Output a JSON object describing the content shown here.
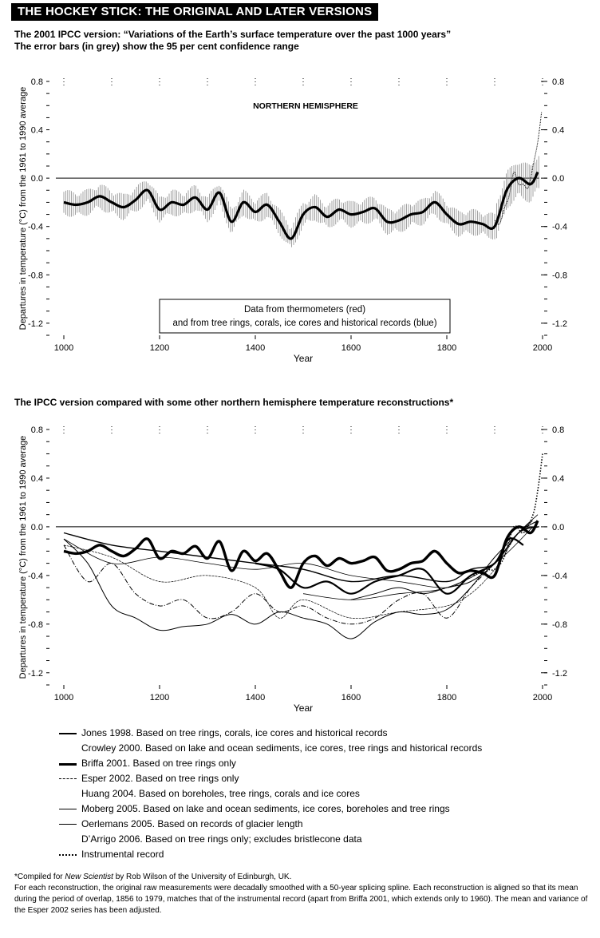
{
  "header": {
    "banner": "THE HOCKEY STICK: THE ORIGINAL AND LATER VERSIONS",
    "subtitle1_line1": "The 2001 IPCC version: “Variations of the Earth’s surface temperature over the past 1000 years”",
    "subtitle1_line2": "The error bars (in grey) show the 95 per cent confidence range",
    "subtitle2": "The IPCC version compared with some other northern hemisphere temperature reconstructions*"
  },
  "colors": {
    "ink": "#000000",
    "grey": "#8a8a8a",
    "background": "#ffffff"
  },
  "chart_data": [
    {
      "type": "line",
      "title": "NORTHERN HEMISPHERE",
      "xlabel": "Year",
      "ylabel": "Departures in temperature (°C) from the 1961 to 1990 average",
      "xlim": [
        1000,
        2000
      ],
      "ylim": [
        -1.3,
        0.8
      ],
      "x_ticks": [
        "1000",
        "1200",
        "1400",
        "1600",
        "1800",
        "2000"
      ],
      "y_ticks": [
        "0.8",
        "0.4",
        "0.0",
        "-0.4",
        "-0.8",
        "-1.2"
      ],
      "legend": "Data from thermometers (red) and from tree rings, corals, ice cores and historical records (blue)",
      "legend_line1": "Data from thermometers (red)",
      "legend_line2": "and from tree rings, corals, ice cores and historical records (blue)",
      "series": [
        {
          "x": [
            1000,
            1025,
            1050,
            1075,
            1100,
            1125,
            1150,
            1175,
            1200,
            1225,
            1250,
            1275,
            1300,
            1325,
            1350,
            1375,
            1400,
            1425,
            1450,
            1475,
            1500,
            1525,
            1550,
            1575,
            1600,
            1625,
            1650,
            1675,
            1700,
            1725,
            1750,
            1775,
            1800,
            1825,
            1850,
            1875,
            1900,
            1925,
            1950,
            1975,
            1990
          ],
          "y": [
            -0.2,
            -0.22,
            -0.2,
            -0.15,
            -0.2,
            -0.24,
            -0.18,
            -0.1,
            -0.26,
            -0.2,
            -0.22,
            -0.16,
            -0.26,
            -0.12,
            -0.36,
            -0.2,
            -0.28,
            -0.22,
            -0.36,
            -0.5,
            -0.3,
            -0.24,
            -0.32,
            -0.26,
            -0.3,
            -0.28,
            -0.25,
            -0.36,
            -0.35,
            -0.3,
            -0.28,
            -0.2,
            -0.3,
            -0.38,
            -0.36,
            -0.38,
            -0.4,
            -0.1,
            0.0,
            -0.05,
            0.05
          ]
        },
        {
          "name": "Instrumental record",
          "x": [
            1900,
            1910,
            1920,
            1930,
            1940,
            1950,
            1960,
            1970,
            1980,
            1990,
            1998
          ],
          "y": [
            -0.35,
            -0.38,
            -0.25,
            -0.15,
            0.05,
            -0.05,
            -0.05,
            -0.08,
            0.1,
            0.3,
            0.55
          ]
        }
      ]
    },
    {
      "type": "line",
      "xlabel": "Year",
      "ylabel": "Departures in temperature (°C) from the 1961 to 1990 average",
      "xlim": [
        1000,
        2000
      ],
      "ylim": [
        -1.3,
        0.8
      ],
      "x_ticks": [
        "1000",
        "1200",
        "1400",
        "1600",
        "1800",
        "2000"
      ],
      "y_ticks": [
        "0.8",
        "0.4",
        "0.0",
        "-0.4",
        "-0.8",
        "-1.2"
      ],
      "series": [
        {
          "name": "Jones 1998. Based on tree rings, corals, ice cores and historical records",
          "x": [
            1000,
            1100,
            1200,
            1300,
            1400,
            1500,
            1600,
            1700,
            1800,
            1850,
            1900,
            1950,
            1991
          ],
          "y": [
            -0.05,
            -0.15,
            -0.2,
            -0.25,
            -0.3,
            -0.35,
            -0.45,
            -0.4,
            -0.45,
            -0.35,
            -0.3,
            -0.05,
            0.0
          ]
        },
        {
          "name": "Crowley 2000. Based on lake and ocean sediments, ice cores, tree rings and historical records",
          "x": [
            1000,
            1100,
            1200,
            1300,
            1400,
            1500,
            1600,
            1700,
            1800,
            1850,
            1900,
            1950,
            1990
          ],
          "y": [
            -0.1,
            -0.3,
            -0.25,
            -0.3,
            -0.35,
            -0.3,
            -0.4,
            -0.45,
            -0.5,
            -0.4,
            -0.3,
            -0.05,
            0.1
          ]
        },
        {
          "name": "Briffa 2001. Based on tree rings only",
          "x": [
            1400,
            1450,
            1500,
            1550,
            1600,
            1650,
            1700,
            1750,
            1800,
            1850,
            1900,
            1930,
            1960
          ],
          "y": [
            -0.3,
            -0.35,
            -0.5,
            -0.45,
            -0.55,
            -0.45,
            -0.4,
            -0.35,
            -0.55,
            -0.4,
            -0.3,
            -0.1,
            -0.15
          ]
        },
        {
          "name": "Esper 2002. Based on tree rings only",
          "x": [
            1000,
            1050,
            1100,
            1150,
            1200,
            1250,
            1300,
            1350,
            1400,
            1450,
            1500,
            1550,
            1600,
            1650,
            1700,
            1750,
            1800,
            1850,
            1900,
            1950,
            1990
          ],
          "y": [
            -0.15,
            -0.45,
            -0.3,
            -0.55,
            -0.65,
            -0.6,
            -0.75,
            -0.7,
            -0.55,
            -0.7,
            -0.65,
            -0.75,
            -0.8,
            -0.75,
            -0.6,
            -0.55,
            -0.75,
            -0.5,
            -0.3,
            -0.05,
            0.05
          ]
        },
        {
          "name": "Huang 2004. Based on boreholes, tree rings, corals and ice cores",
          "x": [
            1500,
            1600,
            1700,
            1800,
            1900,
            1980
          ],
          "y": [
            -0.55,
            -0.6,
            -0.55,
            -0.5,
            -0.3,
            0.0
          ]
        },
        {
          "name": "Moberg 2005. Based on lake and ocean sediments, ice cores, boreholes and tree rings",
          "x": [
            1000,
            1050,
            1100,
            1150,
            1200,
            1250,
            1300,
            1350,
            1400,
            1450,
            1500,
            1550,
            1600,
            1650,
            1700,
            1750,
            1800,
            1850,
            1900,
            1950,
            1979
          ],
          "y": [
            -0.1,
            -0.3,
            -0.65,
            -0.75,
            -0.85,
            -0.82,
            -0.8,
            -0.72,
            -0.8,
            -0.7,
            -0.75,
            -0.8,
            -0.92,
            -0.78,
            -0.7,
            -0.72,
            -0.68,
            -0.5,
            -0.25,
            -0.05,
            0.05
          ]
        },
        {
          "name": "Oerlemans 2005. Based on records of glacier length",
          "x": [
            1600,
            1650,
            1700,
            1750,
            1800,
            1850,
            1900,
            1950,
            1990
          ],
          "y": [
            -0.6,
            -0.55,
            -0.5,
            -0.55,
            -0.5,
            -0.45,
            -0.3,
            -0.05,
            0.05
          ]
        },
        {
          "name": "D’Arrigo 2006. Based on tree rings only; excludes bristlecone data",
          "x": [
            1000,
            1100,
            1200,
            1300,
            1400,
            1450,
            1500,
            1600,
            1700,
            1800,
            1850,
            1900,
            1950,
            1985
          ],
          "y": [
            -0.15,
            -0.25,
            -0.45,
            -0.4,
            -0.5,
            -0.75,
            -0.6,
            -0.75,
            -0.7,
            -0.65,
            -0.55,
            -0.35,
            -0.05,
            0.0
          ]
        },
        {
          "name": "Instrumental record",
          "x": [
            1856,
            1880,
            1900,
            1920,
            1940,
            1960,
            1980,
            1990,
            2000
          ],
          "y": [
            -0.4,
            -0.35,
            -0.35,
            -0.25,
            0.0,
            -0.05,
            0.1,
            0.3,
            0.6
          ]
        },
        {
          "name": "IPCC 2001",
          "x": [
            1000,
            1025,
            1050,
            1075,
            1100,
            1125,
            1150,
            1175,
            1200,
            1225,
            1250,
            1275,
            1300,
            1325,
            1350,
            1375,
            1400,
            1425,
            1450,
            1475,
            1500,
            1525,
            1550,
            1575,
            1600,
            1625,
            1650,
            1675,
            1700,
            1725,
            1750,
            1775,
            1800,
            1825,
            1850,
            1875,
            1900,
            1925,
            1950,
            1975,
            1990
          ],
          "y": [
            -0.2,
            -0.22,
            -0.2,
            -0.15,
            -0.2,
            -0.24,
            -0.18,
            -0.1,
            -0.26,
            -0.2,
            -0.22,
            -0.16,
            -0.26,
            -0.12,
            -0.36,
            -0.2,
            -0.28,
            -0.22,
            -0.36,
            -0.5,
            -0.3,
            -0.24,
            -0.32,
            -0.26,
            -0.3,
            -0.28,
            -0.25,
            -0.36,
            -0.35,
            -0.3,
            -0.28,
            -0.2,
            -0.3,
            -0.38,
            -0.36,
            -0.38,
            -0.4,
            -0.1,
            0.0,
            -0.05,
            0.05
          ]
        }
      ]
    }
  ],
  "legend_items": [
    {
      "label": "Jones 1998. Based on tree rings, corals, ice cores and historical records",
      "style": "solid-thick"
    },
    {
      "label": "Crowley 2000. Based on lake and ocean sediments, ice cores, tree rings and historical records",
      "style": "none"
    },
    {
      "label": "Briffa 2001. Based on tree rings only",
      "style": "solid-heavy"
    },
    {
      "label": "Esper 2002. Based on tree rings only",
      "style": "dashdot"
    },
    {
      "label": "Huang 2004. Based on boreholes, tree rings, corals and ice cores",
      "style": "none"
    },
    {
      "label": "Moberg 2005. Based on lake and ocean sediments, ice cores, boreholes and tree rings",
      "style": "solid-thin"
    },
    {
      "label": "Oerlemans 2005. Based on records of glacier length",
      "style": "solid-thin"
    },
    {
      "label": "D’Arrigo 2006. Based on tree rings only; excludes bristlecone data",
      "style": "none"
    },
    {
      "label": "Instrumental record",
      "style": "dotted"
    }
  ],
  "footnote": {
    "compiled_prefix": "*Compiled for ",
    "compiled_publication": "New Scientist",
    "compiled_suffix": " by Rob Wilson of the University of Edinburgh, UK.",
    "method": "For each reconstruction, the original raw measurements were decadally smoothed with a 50-year splicing spline. Each reconstruction is aligned so that its mean during the period of overlap, 1856 to 1979, matches that of the instrumental record (apart from Briffa 2001, which extends only to 1960). The mean and variance of the Esper 2002 series has been adjusted."
  }
}
